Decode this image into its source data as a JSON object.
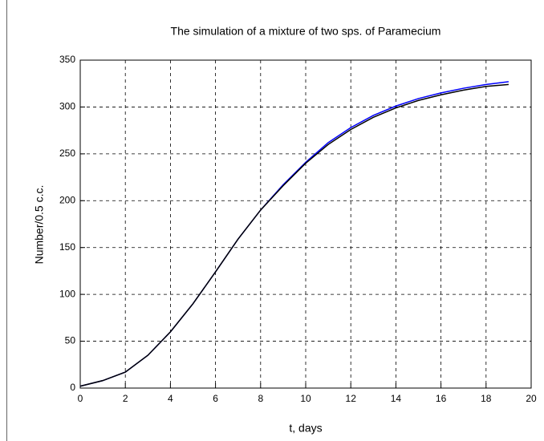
{
  "chart_data": {
    "type": "line",
    "title": "The simulation of a mixture of two sps. of Paramecium",
    "xlabel": "t, days",
    "ylabel": "Number/0.5 c.c.",
    "x": [
      0,
      1,
      2,
      3,
      4,
      5,
      6,
      7,
      8,
      9,
      10,
      11,
      12,
      13,
      14,
      15,
      16,
      17,
      18,
      19
    ],
    "series": [
      {
        "color": "#0000ff",
        "values": [
          2,
          8,
          17,
          35,
          60,
          90,
          124,
          159,
          190,
          217,
          241,
          262,
          278,
          291,
          301,
          309,
          315,
          320,
          324,
          327
        ]
      },
      {
        "color": "#000000",
        "values": [
          2,
          8,
          17,
          35,
          60,
          90,
          124,
          159,
          190,
          216,
          240,
          260,
          276,
          289,
          299,
          307,
          313,
          318,
          322,
          324
        ]
      }
    ],
    "xlim": [
      0,
      20
    ],
    "xticks": [
      0,
      2,
      4,
      6,
      8,
      10,
      12,
      14,
      16,
      18,
      20
    ],
    "ylim": [
      0,
      350
    ],
    "yticks": [
      0,
      50,
      100,
      150,
      200,
      250,
      300,
      350
    ],
    "grid": true
  }
}
